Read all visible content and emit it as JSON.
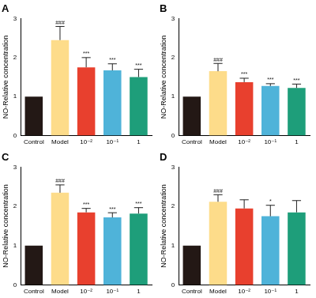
{
  "chart_data": [
    {
      "type": "bar",
      "title": "A",
      "ylabel": "NO-Relative concentration",
      "categories": [
        "Control",
        "Model",
        "10⁻²",
        "10⁻¹",
        "1"
      ],
      "values": [
        1,
        2.45,
        1.75,
        1.67,
        1.5
      ],
      "errors": [
        0,
        0.35,
        0.25,
        0.17,
        0.2
      ],
      "annotations": [
        null,
        "###",
        "***",
        "***",
        "***"
      ],
      "colors": [
        "#231815",
        "#fddc8a",
        "#e8402e",
        "#4fb3d9",
        "#1e9e7a"
      ],
      "ylim": [
        0,
        3
      ],
      "yticks": [
        0,
        1,
        2,
        3
      ],
      "grid": false
    },
    {
      "type": "bar",
      "title": "B",
      "ylabel": "NO-Relative concentration",
      "categories": [
        "Control",
        "Model",
        "10⁻²",
        "10⁻¹",
        "1"
      ],
      "values": [
        1,
        1.65,
        1.37,
        1.27,
        1.22
      ],
      "errors": [
        0,
        0.2,
        0.1,
        0.06,
        0.1
      ],
      "annotations": [
        null,
        "###",
        "***",
        "***",
        "***"
      ],
      "colors": [
        "#231815",
        "#fddc8a",
        "#e8402e",
        "#4fb3d9",
        "#1e9e7a"
      ],
      "ylim": [
        0,
        3
      ],
      "yticks": [
        0,
        1,
        2,
        3
      ],
      "grid": false
    },
    {
      "type": "bar",
      "title": "C",
      "ylabel": "NO-Relative concentration",
      "categories": [
        "Control",
        "Model",
        "10⁻²",
        "10⁻¹",
        "1"
      ],
      "values": [
        1,
        2.35,
        1.85,
        1.72,
        1.82
      ],
      "errors": [
        0,
        0.2,
        0.1,
        0.12,
        0.15
      ],
      "annotations": [
        null,
        "###",
        "***",
        "***",
        "***"
      ],
      "colors": [
        "#231815",
        "#fddc8a",
        "#e8402e",
        "#4fb3d9",
        "#1e9e7a"
      ],
      "ylim": [
        0,
        3
      ],
      "yticks": [
        0,
        1,
        2,
        3
      ],
      "grid": false
    },
    {
      "type": "bar",
      "title": "D",
      "ylabel": "NO-Relative concentration",
      "categories": [
        "Control",
        "Model",
        "10⁻²",
        "10⁻¹",
        "1"
      ],
      "values": [
        1,
        2.12,
        1.95,
        1.75,
        1.85
      ],
      "errors": [
        0,
        0.18,
        0.22,
        0.28,
        0.3
      ],
      "annotations": [
        null,
        "###",
        null,
        "*",
        null
      ],
      "colors": [
        "#231815",
        "#fddc8a",
        "#e8402e",
        "#4fb3d9",
        "#1e9e7a"
      ],
      "ylim": [
        0,
        3
      ],
      "yticks": [
        0,
        1,
        2,
        3
      ],
      "grid": false
    }
  ]
}
